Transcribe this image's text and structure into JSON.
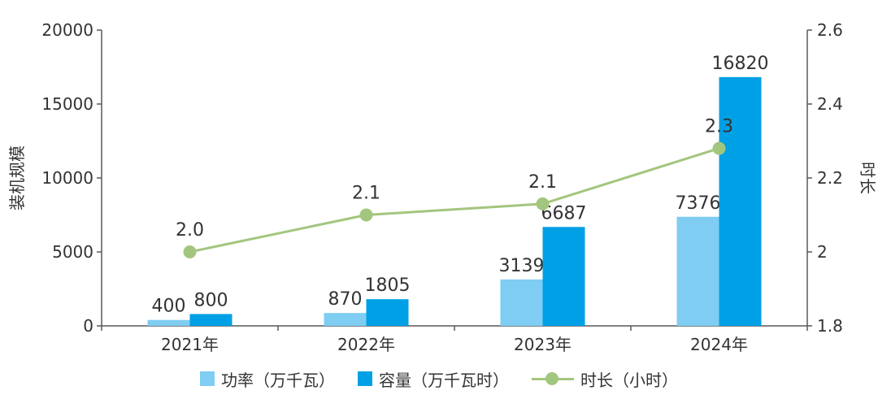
{
  "chart_data": {
    "type": "bar",
    "categories": [
      "2021年",
      "2022年",
      "2023年",
      "2024年"
    ],
    "series": [
      {
        "name": "功率（万千瓦）",
        "kind": "bar",
        "axis": "left",
        "color": "#7fcdf2",
        "values": [
          400,
          870,
          3139,
          7376
        ]
      },
      {
        "name": "容量（万千瓦时）",
        "kind": "bar",
        "axis": "left",
        "color": "#00a0e6",
        "values": [
          800,
          1805,
          6687,
          16820
        ]
      },
      {
        "name": "时长（小时）",
        "kind": "line",
        "axis": "right",
        "color": "#a3c67e",
        "values": [
          2.0,
          2.1,
          2.13,
          2.28
        ],
        "labels": [
          "2.0",
          "2.1",
          "2.1",
          "2.3"
        ]
      }
    ],
    "ylabel": "装机规模",
    "y2label": "时长",
    "ylim": [
      0,
      20000
    ],
    "y2lim": [
      1.8,
      2.6
    ],
    "yticks": [
      "0",
      "5000",
      "10000",
      "15000",
      "20000"
    ],
    "y2ticks": [
      "1.8",
      "2",
      "2.2",
      "2.4",
      "2.6"
    ],
    "legend_position": "bottom",
    "grid": false
  }
}
